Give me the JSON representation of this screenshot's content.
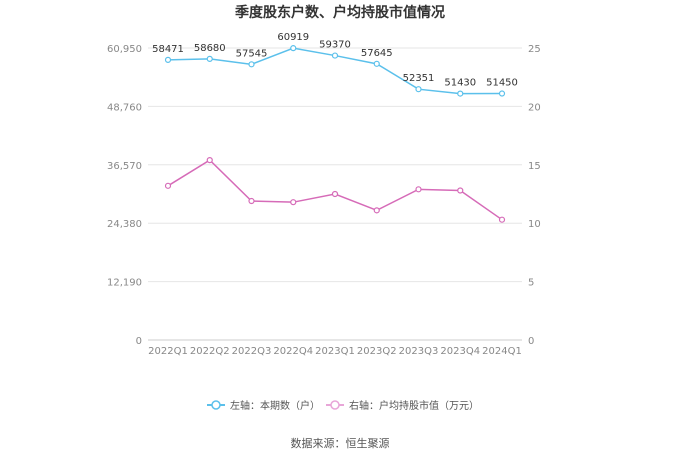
{
  "chart_data": {
    "type": "line",
    "title": "季度股东户数、户均持股市值情况",
    "categories": [
      "2022Q1",
      "2022Q2",
      "2022Q3",
      "2022Q4",
      "2023Q1",
      "2023Q2",
      "2023Q3",
      "2023Q4",
      "2024Q1"
    ],
    "left_axis": {
      "ticks": [
        "0",
        "12,190",
        "24,380",
        "36,570",
        "48,760",
        "60,950"
      ],
      "ylim": [
        0,
        60950
      ]
    },
    "right_axis": {
      "ticks": [
        "0",
        "5",
        "10",
        "15",
        "20",
        "25"
      ],
      "ylim": [
        0,
        25
      ]
    },
    "series": [
      {
        "name": "左轴：本期数（户）",
        "axis": "left",
        "color": "#5bc0eb",
        "values": [
          58471,
          58680,
          57545,
          60919,
          59370,
          57645,
          52351,
          51430,
          51450
        ],
        "labels": [
          "58471",
          "58680",
          "57545",
          "60919",
          "59370",
          "57645",
          "52351",
          "51430",
          "51450"
        ]
      },
      {
        "name": "右轴：户均持股市值（万元）",
        "axis": "right",
        "color": "#d66bb8",
        "values": [
          13.2,
          15.4,
          11.9,
          11.8,
          12.5,
          11.1,
          12.9,
          12.8,
          10.3
        ]
      }
    ],
    "grid": true,
    "legend_position": "bottom"
  },
  "footer": {
    "source": "数据来源：恒生聚源"
  }
}
